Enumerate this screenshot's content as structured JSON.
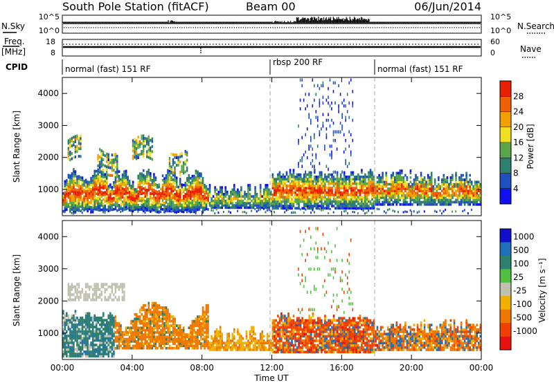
{
  "header": {
    "station": "South Pole Station (fitACF)",
    "beam": "Beam 00",
    "date": "06/Jun/2014"
  },
  "nsky_panel": {
    "left_label": "N.Sky",
    "right_label": "N.Search",
    "left_ticks": [
      "10^5",
      "10^0"
    ],
    "right_ticks": [
      "10^5",
      "10^0"
    ]
  },
  "freq_panel": {
    "left_label_1": "Freq.",
    "left_label_2": "[MHz]",
    "right_label": "Nave",
    "left_ticks": [
      "18",
      "8"
    ],
    "right_ticks": [
      "60",
      "0"
    ]
  },
  "cpid": {
    "label": "CPID",
    "segments": [
      {
        "label": "normal (fast) 151 RF",
        "start": 0,
        "end": 12
      },
      {
        "label": "rbsp 200 RF",
        "start": 12,
        "end": 18
      },
      {
        "label": "normal (fast) 151 RF",
        "start": 18,
        "end": 24
      }
    ]
  },
  "chart_data": [
    {
      "type": "heatmap",
      "name": "power",
      "ylabel": "Slant Range [km]",
      "y_ticks": [
        "1000",
        "2000",
        "3000",
        "4000"
      ],
      "ylim": [
        180,
        4500
      ],
      "colorbar": {
        "label": "Power [dB]",
        "ticks": [
          "4",
          "8",
          "12",
          "16",
          "20",
          "24",
          "28"
        ],
        "colors": [
          "#1010f0",
          "#2050c0",
          "#2e7f6e",
          "#58a648",
          "#f0e020",
          "#f0a000",
          "#f06000",
          "#e82000"
        ]
      }
    },
    {
      "type": "heatmap",
      "name": "velocity",
      "ylabel": "Slant Range [km]",
      "y_ticks": [
        "1000",
        "2000",
        "3000",
        "4000"
      ],
      "ylim": [
        180,
        4500
      ],
      "xlabel": "Time UT",
      "x_ticks": [
        "00:00",
        "04:00",
        "08:00",
        "12:00",
        "16:00",
        "20:00",
        "00:00"
      ],
      "xlim": [
        0,
        24
      ],
      "colorbar": {
        "label": "Velocity [m s⁻¹]",
        "ticks": [
          "1000",
          "500",
          "100",
          "25",
          "-25",
          "-100",
          "-500",
          "-1000"
        ],
        "colors": [
          "#1010c8",
          "#2070b8",
          "#2e7f6e",
          "#50c040",
          "#c0c0b0",
          "#f0b000",
          "#f07800",
          "#f04000",
          "#e81010"
        ]
      }
    }
  ]
}
